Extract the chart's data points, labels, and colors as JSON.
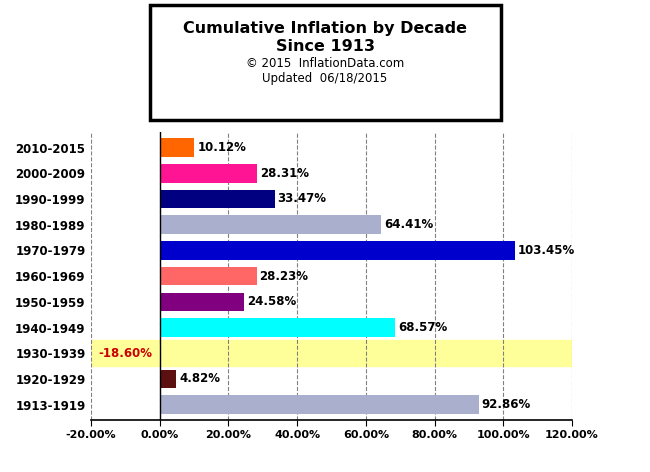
{
  "title_line1": "Cumulative Inflation by Decade",
  "title_line2": "Since 1913",
  "title_line3": "© 2015  InflationData.com",
  "title_line4": "Updated  06/18/2015",
  "categories": [
    "1913-1919",
    "1920-1929",
    "1930-1939",
    "1940-1949",
    "1950-1959",
    "1960-1969",
    "1970-1979",
    "1980-1989",
    "1990-1999",
    "2000-2009",
    "2010-2015"
  ],
  "values": [
    92.86,
    4.82,
    -18.6,
    68.57,
    24.58,
    28.23,
    103.45,
    64.41,
    33.47,
    28.31,
    10.12
  ],
  "bar_colors": [
    "#A9AFCC",
    "#5C1010",
    "#FFFF99",
    "#00FFFF",
    "#800080",
    "#FF6666",
    "#0000CC",
    "#A9AFCC",
    "#000080",
    "#FF1493",
    "#FF6600"
  ],
  "label_colors": [
    "#000000",
    "#000000",
    "#CC0000",
    "#000000",
    "#000000",
    "#000000",
    "#000000",
    "#000000",
    "#000000",
    "#000000",
    "#000000"
  ],
  "bg_color": "#FFFFFF",
  "xlim": [
    -20,
    120
  ],
  "xticks": [
    -20,
    0,
    20,
    40,
    60,
    80,
    100,
    120
  ],
  "xtick_labels": [
    "-20.00%",
    "0.00%",
    "20.00%",
    "40.00%",
    "60.00%",
    "80.00%",
    "100.00%",
    "120.00%"
  ],
  "label_1930_bg": "#FFFF99",
  "highlight_row_idx": 2
}
